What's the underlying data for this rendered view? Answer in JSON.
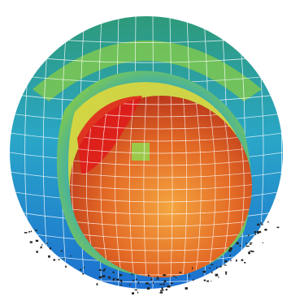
{
  "figure": {
    "subject": "mesh-sphere-cutaway",
    "colors": {
      "background": "#ffffff",
      "outer_shell_top": "#2e9a7a",
      "outer_shell_mid": "#2aa6c8",
      "outer_shell_bottom": "#1b6fd0",
      "cut_rim": "#7ec850",
      "inner_rim_yellow": "#e0d83a",
      "core_light": "#f4a640",
      "core_mid": "#e36a25",
      "core_dark": "#b8321a",
      "core_hot": "#e01a1a",
      "core_green_patch": "#9cc84a",
      "mesh_line": "#ffffff",
      "debris": "#222222"
    }
  }
}
